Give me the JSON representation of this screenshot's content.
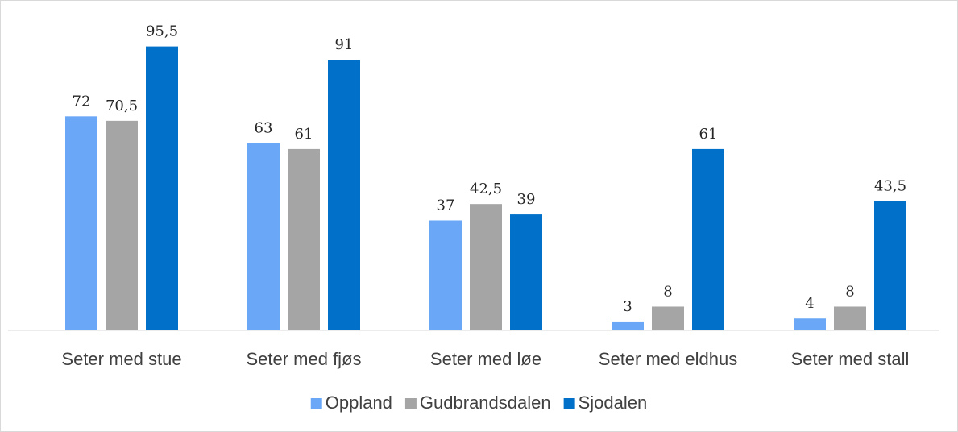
{
  "chart_data": {
    "type": "bar",
    "categories": [
      "Seter med stue",
      "Seter med fjøs",
      "Seter med løe",
      "Seter med eldhus",
      "Seter med stall"
    ],
    "series": [
      {
        "name": "Oppland",
        "color": "#6aa8f7",
        "values": [
          72,
          63,
          37,
          3,
          4
        ],
        "value_labels": [
          "72",
          "63",
          "37",
          "3",
          "4"
        ]
      },
      {
        "name": "Gudbrandsdalen",
        "color": "#a5a5a5",
        "values": [
          70.5,
          61,
          42.5,
          8,
          8
        ],
        "value_labels": [
          "70,5",
          "61",
          "42,5",
          "8",
          "8"
        ]
      },
      {
        "name": "Sjodalen",
        "color": "#0070c8",
        "values": [
          95.5,
          91,
          39,
          61,
          43.5
        ],
        "value_labels": [
          "95,5",
          "91",
          "39",
          "61",
          "43,5"
        ]
      }
    ],
    "ylim": [
      0,
      100
    ],
    "legend": "bottom"
  }
}
